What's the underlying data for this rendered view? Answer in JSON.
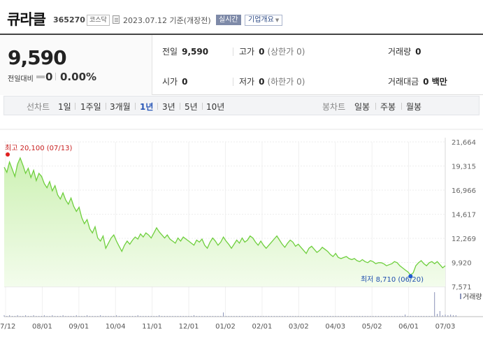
{
  "header": {
    "stock_name": "큐라클",
    "stock_code": "365270",
    "market": "코스닥",
    "base_date": "2023.07.12 기준(개장전)",
    "realtime_label": "실시간",
    "company_label": "기업개요"
  },
  "price": {
    "current": "9,590",
    "change_label": "전일대비",
    "change_value": "0",
    "change_rate": "0.00%"
  },
  "stats": {
    "prev_close_label": "전일",
    "prev_close": "9,590",
    "high_label": "고가",
    "high": "0",
    "upper_limit": "(상한가 0)",
    "volume_label": "거래량",
    "volume": "0",
    "open_label": "시가",
    "open": "0",
    "low_label": "저가",
    "low": "0",
    "lower_limit": "(하한가 0)",
    "amount_label": "거래대금",
    "amount": "0 백만"
  },
  "tabs": {
    "line_label": "선차트",
    "periods": [
      "1일",
      "1주일",
      "3개월",
      "1년",
      "3년",
      "5년",
      "10년"
    ],
    "active_period": "1년",
    "candle_label": "봉차트",
    "candles": [
      "일봉",
      "주봉",
      "월봉"
    ]
  },
  "colors": {
    "line": "#6fcf3e",
    "fill_top": "#cdf1b4",
    "fill_bottom": "#f3fcec",
    "high_marker": "#e02020",
    "low_marker": "#1f5bd6",
    "active_tab": "#2856b6",
    "volume_bar": "#8a93b8"
  },
  "chart_data": {
    "type": "area",
    "y_ticks": [
      "21,664",
      "19,315",
      "16,966",
      "14,617",
      "12,269",
      "9,920",
      "7,571"
    ],
    "ylim": [
      7571,
      21664
    ],
    "x_ticks": [
      "07/12",
      "08/01",
      "09/01",
      "10/04",
      "11/01",
      "12/01",
      "01/02",
      "02/01",
      "03/02",
      "04/03",
      "05/02",
      "06/01",
      "07/03"
    ],
    "high_label": "최고 20,100 (07/13)",
    "low_label": "최저 8,710 (06/20)",
    "volume_label": "거래량",
    "series": [
      {
        "values": [
          19200,
          18700,
          19700,
          19000,
          18300,
          19500,
          20100,
          19400,
          18600,
          19100,
          18200,
          18900,
          17900,
          18600,
          18300,
          17600,
          17200,
          17800,
          16900,
          17400,
          16500,
          16100,
          16700,
          16000,
          15600,
          16200,
          15400,
          14900,
          15300,
          14300,
          13700,
          14100,
          13200,
          12800,
          13400,
          12300,
          12000,
          12500,
          11300,
          11800,
          12300,
          12600,
          12000,
          11500,
          11000,
          11600,
          12000,
          11700,
          12100,
          12400,
          12200,
          12700,
          12400,
          12800,
          12600,
          12300,
          12800,
          13300,
          12900,
          12600,
          12300,
          12600,
          12200,
          12000,
          11800,
          12300,
          12000,
          12400,
          12200,
          12000,
          11800,
          11600,
          12100,
          11900,
          12200,
          11600,
          11300,
          11900,
          12300,
          12000,
          11600,
          11900,
          12400,
          12000,
          11700,
          11300,
          11700,
          12100,
          11800,
          12300,
          11900,
          12100,
          12500,
          12300,
          11900,
          11600,
          12000,
          11600,
          11300,
          11600,
          11900,
          12200,
          12500,
          12100,
          11700,
          11400,
          11800,
          12100,
          11900,
          11500,
          11700,
          11400,
          11100,
          10800,
          11300,
          11500,
          11200,
          10900,
          11100,
          11400,
          11200,
          11000,
          10700,
          10500,
          10800,
          10400,
          10300,
          10400,
          10500,
          10300,
          10200,
          10300,
          10100,
          10000,
          10200,
          10000,
          9900,
          10100,
          10000,
          9800,
          9900,
          9900,
          9800,
          9600,
          9700,
          9800,
          10000,
          9900,
          9600,
          9400,
          9200,
          9000,
          8710,
          8900,
          9600,
          9900,
          10100,
          9800,
          9600,
          9900,
          10000,
          9800,
          10000,
          9700,
          9400,
          9590
        ]
      }
    ],
    "volume": [
      2,
      1,
      2,
      1,
      1,
      2,
      1,
      1,
      2,
      1,
      1,
      2,
      1,
      1,
      1,
      2,
      1,
      1,
      2,
      1,
      1,
      1,
      2,
      1,
      1,
      1,
      1,
      2,
      1,
      1,
      1,
      2,
      1,
      1,
      1,
      1,
      2,
      1,
      1,
      1,
      1,
      1,
      2,
      1,
      1,
      1,
      1,
      1,
      1,
      1,
      2,
      1,
      1,
      1,
      1,
      1,
      1,
      1,
      2,
      1,
      1,
      1,
      1,
      1,
      1,
      1,
      1,
      1,
      1,
      1,
      1,
      2,
      1,
      1,
      1,
      1,
      1,
      1,
      1,
      1,
      1,
      1,
      6,
      1,
      1,
      1,
      1,
      1,
      1,
      1,
      1,
      1,
      1,
      1,
      1,
      1,
      1,
      1,
      1,
      1,
      1,
      1,
      1,
      1,
      1,
      1,
      1,
      1,
      1,
      1,
      1,
      1,
      1,
      1,
      1,
      1,
      1,
      1,
      1,
      1,
      1,
      1,
      1,
      1,
      1,
      1,
      1,
      1,
      1,
      1,
      1,
      1,
      1,
      1,
      1,
      1,
      1,
      1,
      1,
      1,
      1,
      1,
      1,
      1,
      1,
      1,
      1,
      1,
      1,
      1,
      3,
      1,
      1,
      1,
      1,
      1,
      1,
      1,
      1,
      1,
      1,
      35,
      4,
      8,
      2,
      3,
      2,
      3,
      2,
      2
    ],
    "grid": true
  }
}
